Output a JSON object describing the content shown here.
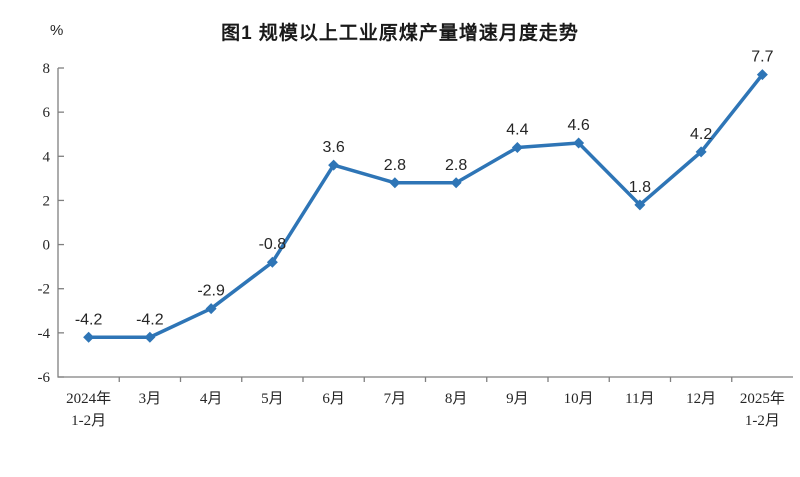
{
  "chart": {
    "title": "图1  规模以上工业原煤产量增速月度走势",
    "unit_label": "%"
  },
  "chart_data": {
    "type": "line",
    "title": "图1  规模以上工业原煤产量增速月度走势",
    "ylabel": "%",
    "xlabel": "",
    "categories": [
      "2024年\n1-2月",
      "3月",
      "4月",
      "5月",
      "6月",
      "7月",
      "8月",
      "9月",
      "10月",
      "11月",
      "12月",
      "2025年\n1-2月"
    ],
    "values": [
      -4.2,
      -4.2,
      -2.9,
      -0.8,
      3.6,
      2.8,
      2.8,
      4.4,
      4.6,
      1.8,
      4.2,
      7.7
    ],
    "data_labels": [
      "-4.2",
      "-4.2",
      "-2.9",
      "-0.8",
      "3.6",
      "2.8",
      "2.8",
      "4.4",
      "4.6",
      "1.8",
      "4.2",
      "7.7"
    ],
    "ylim": [
      -6,
      8
    ],
    "yticks": [
      8,
      6,
      4,
      2,
      0,
      -2,
      -4,
      -6
    ],
    "grid": false,
    "legend_position": "none",
    "marker": "diamond",
    "colors": {
      "line": "#2E75B6",
      "marker": "#2E75B6",
      "axis": "#7F7F7F",
      "tick_label": "#262626",
      "data_label": "#262626",
      "title": "#1A1A1A",
      "background": "#FFFFFF"
    }
  }
}
